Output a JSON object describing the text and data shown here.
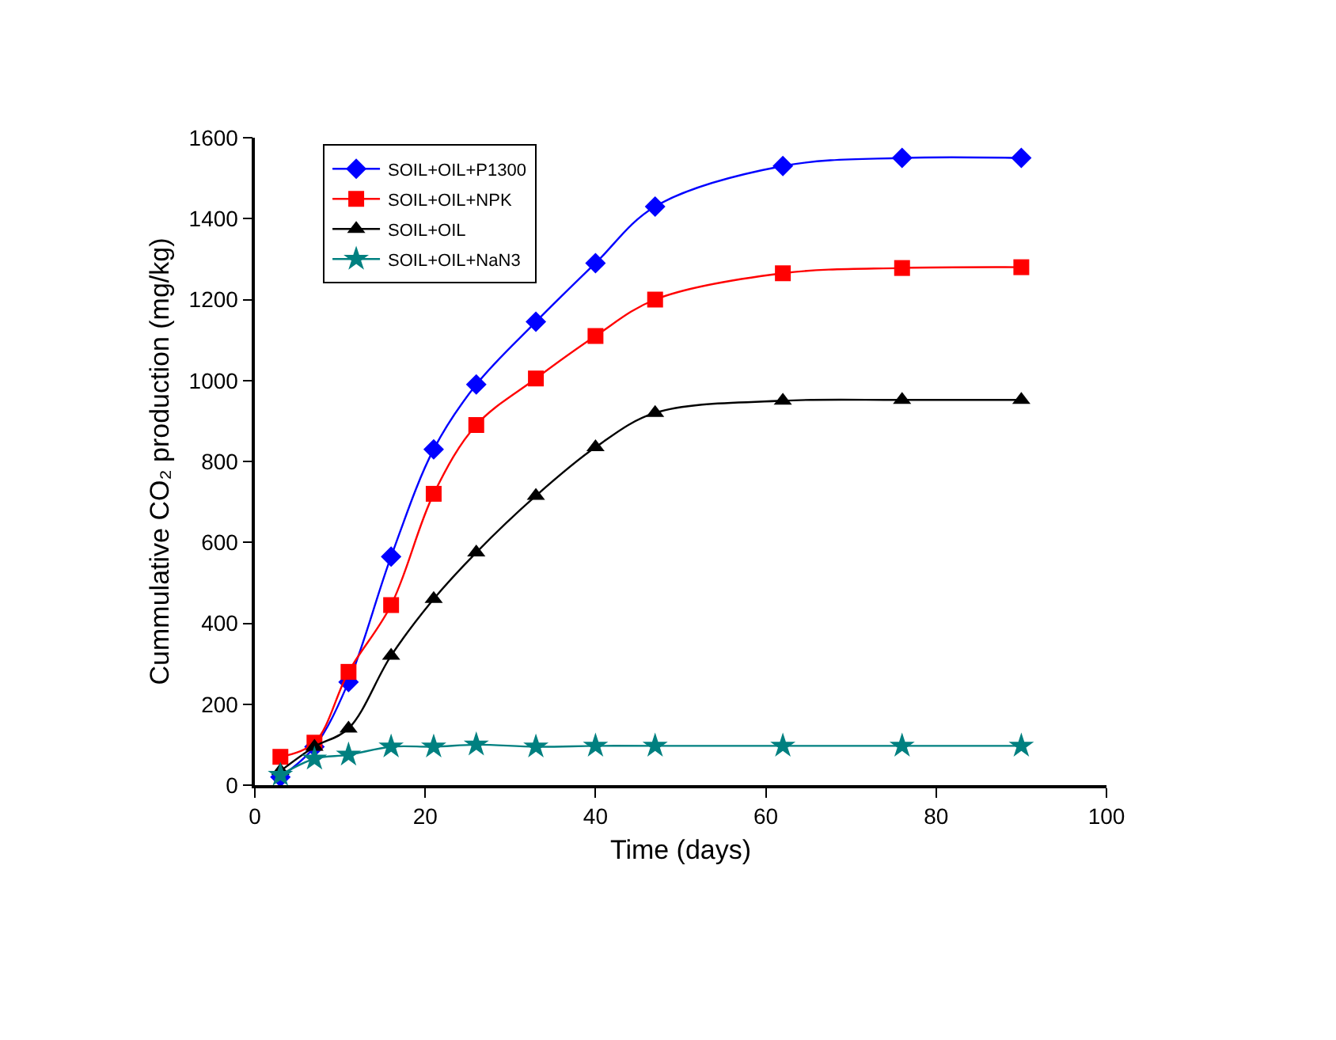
{
  "chart_data": {
    "type": "line",
    "xlabel": "Time (days)",
    "ylabel": "Cummulative CO₂ production (mg/kg)",
    "x": [
      3,
      7,
      11,
      16,
      21,
      26,
      33,
      40,
      47,
      62,
      76,
      90
    ],
    "series": [
      {
        "name": "SOIL+OIL+P1300",
        "color": "#0000ff",
        "marker": "diamond",
        "values": [
          20,
          95,
          255,
          565,
          830,
          990,
          1145,
          1290,
          1430,
          1530,
          1550,
          1550
        ]
      },
      {
        "name": "SOIL+OIL+NPK",
        "color": "#ff0000",
        "marker": "square",
        "values": [
          70,
          105,
          280,
          445,
          720,
          890,
          1005,
          1110,
          1200,
          1265,
          1278,
          1280
        ]
      },
      {
        "name": "SOIL+OIL",
        "color": "#000000",
        "marker": "triangle",
        "values": [
          35,
          95,
          140,
          320,
          460,
          575,
          715,
          835,
          920,
          950,
          952,
          952
        ]
      },
      {
        "name": "SOIL+OIL+NaN3",
        "color": "#008080",
        "marker": "star",
        "values": [
          25,
          65,
          75,
          95,
          95,
          100,
          95,
          97,
          97,
          97,
          97,
          97
        ]
      }
    ],
    "xlim": [
      0,
      100
    ],
    "xticks": [
      0,
      20,
      40,
      60,
      80,
      100
    ],
    "ylim": [
      0,
      1600
    ],
    "yticks": [
      0,
      200,
      400,
      600,
      800,
      1000,
      1200,
      1400,
      1600
    ],
    "grid": false,
    "legend": "top left",
    "line_style": "solid"
  }
}
